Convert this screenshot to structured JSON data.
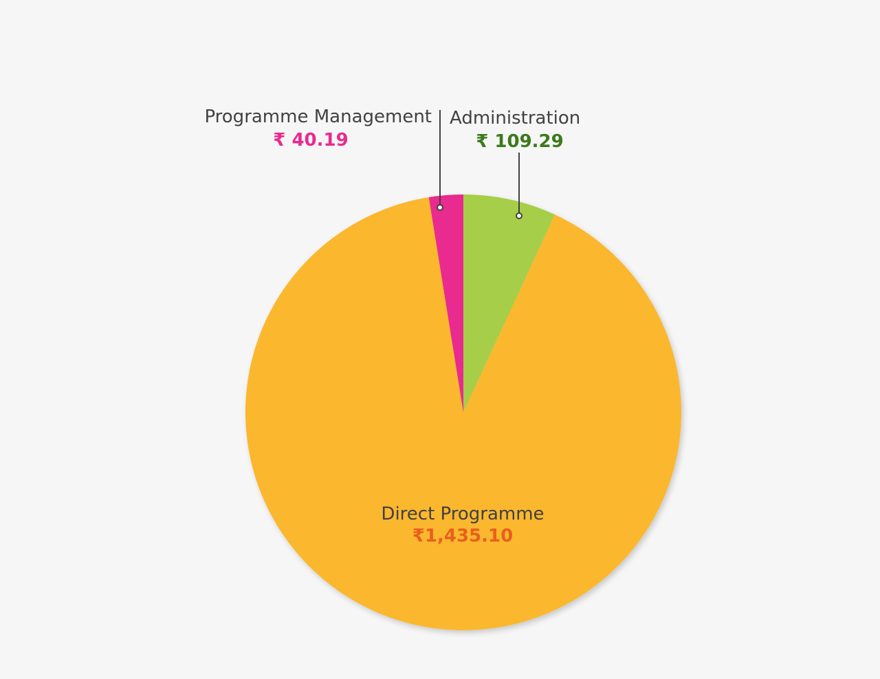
{
  "chart_data": {
    "type": "pie",
    "currency_symbol": "₹",
    "slices": [
      {
        "name": "Administration",
        "value": 109.29,
        "value_label": "₹ 109.29",
        "color": "#a6ce48",
        "label_color": "#3d7a1c"
      },
      {
        "name": "Direct Programme",
        "value": 1435.1,
        "value_label": "₹1,435.10",
        "color": "#fbb72f",
        "label_color": "#e8601c"
      },
      {
        "name": "Programme Management",
        "value": 40.19,
        "value_label": "₹ 40.19",
        "color": "#e92a8f",
        "label_color": "#e92a8f"
      }
    ]
  }
}
